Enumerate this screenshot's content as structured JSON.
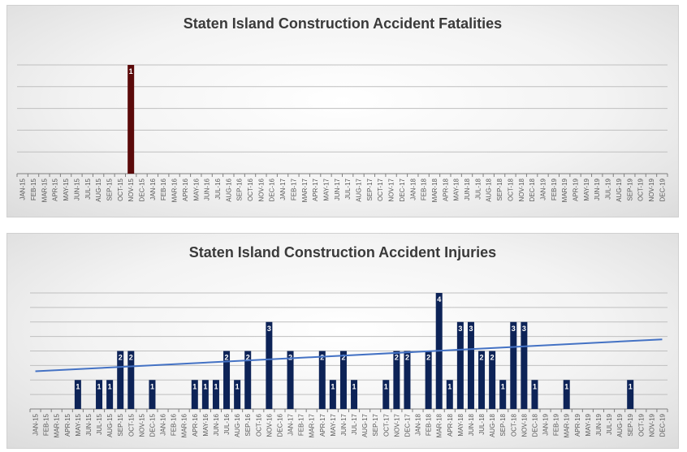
{
  "chart_data": [
    {
      "type": "bar",
      "title": "Staten Island Construction Accident Fatalities",
      "bar_color": "#5b0a0a",
      "ylim": [
        0,
        1
      ],
      "grid": true,
      "categories": [
        "JAN-15",
        "FEB-15",
        "MAR-15",
        "APR-15",
        "MAY-15",
        "JUN-15",
        "JUL-15",
        "AUG-15",
        "SEP-15",
        "OCT-15",
        "NOV-15",
        "DEC-15",
        "JAN-16",
        "FEB-16",
        "MAR-16",
        "APR-16",
        "MAY-16",
        "JUN-16",
        "JUL-16",
        "AUG-16",
        "SEP-16",
        "OCT-16",
        "NOV-16",
        "DEC-16",
        "JAN-17",
        "FEB-17",
        "MAR-17",
        "APR-17",
        "MAY-17",
        "JUN-17",
        "JUL-17",
        "AUG-17",
        "SEP-17",
        "OCT-17",
        "NOV-17",
        "DEC-17",
        "JAN-18",
        "FEB-18",
        "MAR-18",
        "APR-18",
        "MAY-18",
        "JUN-18",
        "JUL-18",
        "AUG-18",
        "SEP-18",
        "OCT-18",
        "NOV-18",
        "DEC-18",
        "JAN-19",
        "FEB-19",
        "MAR-19",
        "APR-19",
        "MAY-19",
        "JUN-19",
        "JUL-19",
        "AUG-19",
        "SEP-19",
        "OCT-19",
        "NOV-19",
        "DEC-19"
      ],
      "values": [
        0,
        0,
        0,
        0,
        0,
        0,
        0,
        0,
        0,
        0,
        1,
        0,
        0,
        0,
        0,
        0,
        0,
        0,
        0,
        0,
        0,
        0,
        0,
        0,
        0,
        0,
        0,
        0,
        0,
        0,
        0,
        0,
        0,
        0,
        0,
        0,
        0,
        0,
        0,
        0,
        0,
        0,
        0,
        0,
        0,
        0,
        0,
        0,
        0,
        0,
        0,
        0,
        0,
        0,
        0,
        0,
        0,
        0,
        0,
        0
      ]
    },
    {
      "type": "bar",
      "title": "Staten Island Construction Accident Injuries",
      "bar_color": "#0d2357",
      "trendline_color": "#4472c4",
      "trendline": {
        "start": 1.3,
        "end": 2.4
      },
      "ylim": [
        0,
        4
      ],
      "grid": true,
      "categories": [
        "JAN-15",
        "FEB-15",
        "MAR-15",
        "APR-15",
        "MAY-15",
        "JUN-15",
        "JUL-15",
        "AUG-15",
        "SEP-15",
        "OCT-15",
        "NOV-15",
        "DEC-15",
        "JAN-16",
        "FEB-16",
        "MAR-16",
        "APR-16",
        "MAY-16",
        "JUN-16",
        "JUL-16",
        "AUG-16",
        "SEP-16",
        "OCT-16",
        "NOV-16",
        "DEC-16",
        "JAN-17",
        "FEB-17",
        "MAR-17",
        "APR-17",
        "MAY-17",
        "JUN-17",
        "JUL-17",
        "AUG-17",
        "SEP-17",
        "OCT-17",
        "NOV-17",
        "DEC-17",
        "JAN-18",
        "FEB-18",
        "MAR-18",
        "APR-18",
        "MAY-18",
        "JUN-18",
        "JUL-18",
        "AUG-18",
        "SEP-18",
        "OCT-18",
        "NOV-18",
        "DEC-18",
        "JAN-19",
        "FEB-19",
        "MAR-19",
        "APR-19",
        "MAY-19",
        "JUN-19",
        "JUL-19",
        "AUG-19",
        "SEP-19",
        "OCT-19",
        "NOV-19",
        "DEC-19"
      ],
      "values": [
        0,
        0,
        0,
        0,
        1,
        0,
        1,
        1,
        2,
        2,
        0,
        1,
        0,
        0,
        0,
        1,
        1,
        1,
        2,
        1,
        2,
        0,
        3,
        0,
        2,
        0,
        0,
        2,
        1,
        2,
        1,
        0,
        0,
        1,
        2,
        2,
        0,
        2,
        4,
        1,
        3,
        3,
        2,
        2,
        1,
        3,
        3,
        1,
        0,
        0,
        1,
        0,
        0,
        0,
        0,
        0,
        1,
        0,
        0,
        0
      ]
    }
  ]
}
